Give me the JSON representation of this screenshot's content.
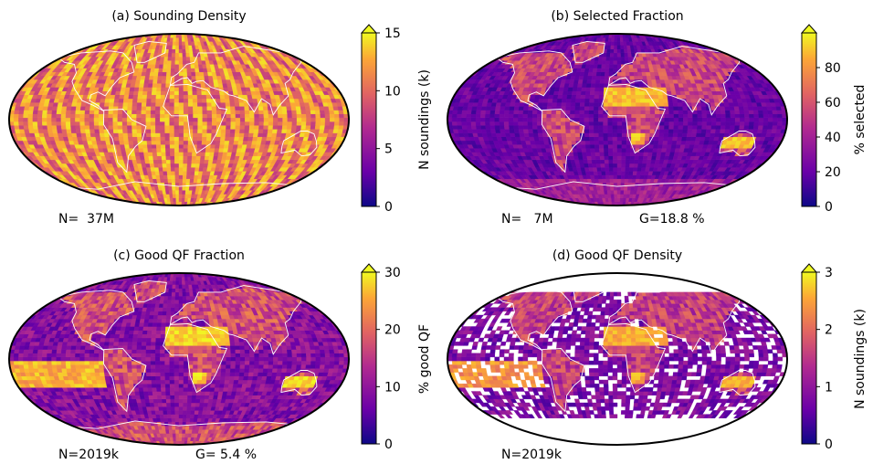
{
  "panels": [
    {
      "title": "(a) Sounding Density",
      "colorbar_label": "N soundings (k)",
      "ticks": [
        "0",
        "5",
        "10",
        "15"
      ],
      "tick_values": [
        0,
        5,
        10,
        15
      ],
      "vmax": 15,
      "extend_max": true,
      "n_text": "N=  37M",
      "g_text": "",
      "style": "dense"
    },
    {
      "title": "(b) Selected Fraction",
      "colorbar_label": "% selected",
      "ticks": [
        "0",
        "20",
        "40",
        "60",
        "80"
      ],
      "tick_values": [
        0,
        20,
        40,
        60,
        80
      ],
      "vmax": 100,
      "extend_max": true,
      "n_text": "N=   7M",
      "g_text": "G=18.8 %",
      "style": "selected"
    },
    {
      "title": "(c) Good QF Fraction",
      "colorbar_label": "% good QF",
      "ticks": [
        "0",
        "10",
        "20",
        "30"
      ],
      "tick_values": [
        0,
        10,
        20,
        30
      ],
      "vmax": 30,
      "extend_max": true,
      "n_text": "N=2019k",
      "g_text": "G= 5.4 %",
      "style": "goodfrac"
    },
    {
      "title": "(d) Good QF Density",
      "colorbar_label": "N soundings (k)",
      "ticks": [
        "0",
        "1",
        "2",
        "3"
      ],
      "tick_values": [
        0,
        1,
        2,
        3
      ],
      "vmax": 3,
      "extend_max": true,
      "n_text": "N=2019k",
      "g_text": "",
      "style": "gooddensity"
    }
  ],
  "colormap": [
    "#0d0887",
    "#6a00a8",
    "#b12a90",
    "#e16462",
    "#fca636",
    "#f0f921"
  ]
}
